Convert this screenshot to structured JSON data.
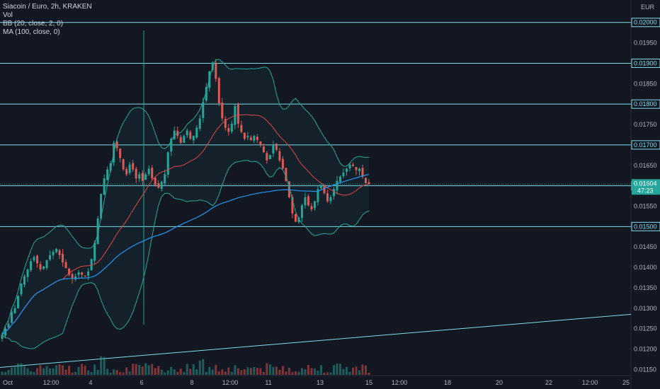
{
  "legend": {
    "symbol": "Siacoin / Euro, 2h, KRAKEN",
    "vol": "Vol",
    "bb": "BB (20, close, 2, 0)",
    "ma": "MA (100, close, 0)"
  },
  "currency": "EUR",
  "colors": {
    "background": "#131722",
    "up": "#26a69a",
    "down": "#ef5350",
    "hline": "#80deea",
    "bb_basis": "#e0454a",
    "bb_band": "#26a69a",
    "ma": "#2196f3",
    "trend": "#80deea",
    "price_tag": "#26a69a"
  },
  "chart_data": {
    "type": "candlestick",
    "title": "Siacoin / Euro, 2h, KRAKEN",
    "ylim": [
      0.01135,
      0.02055
    ],
    "y_tick_labels": [
      "0.01150",
      "0.01200",
      "0.01250",
      "0.01300",
      "0.01350",
      "0.01400",
      "0.01450",
      "0.01500",
      "0.01550",
      "0.01600",
      "0.01650",
      "0.01700",
      "0.01750",
      "0.01800",
      "0.01850",
      "0.01900",
      "0.01950",
      "0.02000"
    ],
    "x_tick_labels": [
      "Oct",
      "12:00",
      "4",
      "6",
      "8",
      "12:00",
      "11",
      "13",
      "15",
      "12:00",
      "18",
      "20",
      "22",
      "12:00",
      "25"
    ],
    "horizontal_levels": [
      {
        "price": 0.02,
        "label": "0.02000"
      },
      {
        "price": 0.019,
        "label": "0.01900"
      },
      {
        "price": 0.018,
        "label": "0.01800"
      },
      {
        "price": 0.017,
        "label": "0.01700"
      },
      {
        "price": 0.016,
        "label": "0.01600"
      },
      {
        "price": 0.015,
        "label": "0.01500"
      }
    ],
    "trendline": {
      "from_price": 0.01155,
      "to_price": 0.01285
    },
    "current_price": {
      "value": "0.01604",
      "countdown": "47:23"
    },
    "ohlc_path": [
      0.01235,
      0.0125,
      0.01262,
      0.0129,
      0.013,
      0.0133,
      0.0136,
      0.01378,
      0.01395,
      0.01415,
      0.01425,
      0.0141,
      0.01395,
      0.01402,
      0.01418,
      0.0143,
      0.01438,
      0.01445,
      0.0143,
      0.01412,
      0.01398,
      0.01382,
      0.01372,
      0.01378,
      0.01388,
      0.01382,
      0.01378,
      0.0139,
      0.0142,
      0.0146,
      0.0152,
      0.0158,
      0.01618,
      0.0164,
      0.01655,
      0.01705,
      0.01692,
      0.01668,
      0.0164,
      0.01628,
      0.01652,
      0.0164,
      0.01618,
      0.01628,
      0.01612,
      0.01628,
      0.01642,
      0.01618,
      0.01602,
      0.01595,
      0.0161,
      0.01628,
      0.01682,
      0.01715,
      0.01735,
      0.01722,
      0.01705,
      0.01722,
      0.01735,
      0.01715,
      0.01722,
      0.01742,
      0.01765,
      0.01805,
      0.01842,
      0.0188,
      0.01902,
      0.01862,
      0.01802,
      0.01765,
      0.01742,
      0.01732,
      0.01752,
      0.01795,
      0.01752,
      0.01732,
      0.01715,
      0.01722,
      0.01712,
      0.01722,
      0.01712,
      0.017,
      0.01682,
      0.01662,
      0.01675,
      0.017,
      0.01688,
      0.01662,
      0.01642,
      0.01612,
      0.01572,
      0.01532,
      0.01512,
      0.01522,
      0.01552,
      0.01572,
      0.01552,
      0.01542,
      0.01562,
      0.01592,
      0.01602,
      0.01582,
      0.01562,
      0.01572,
      0.01592,
      0.01612,
      0.01622,
      0.01632,
      0.01642,
      0.01652,
      0.01648,
      0.01638,
      0.01642,
      0.01622,
      0.01606,
      0.01604
    ]
  }
}
